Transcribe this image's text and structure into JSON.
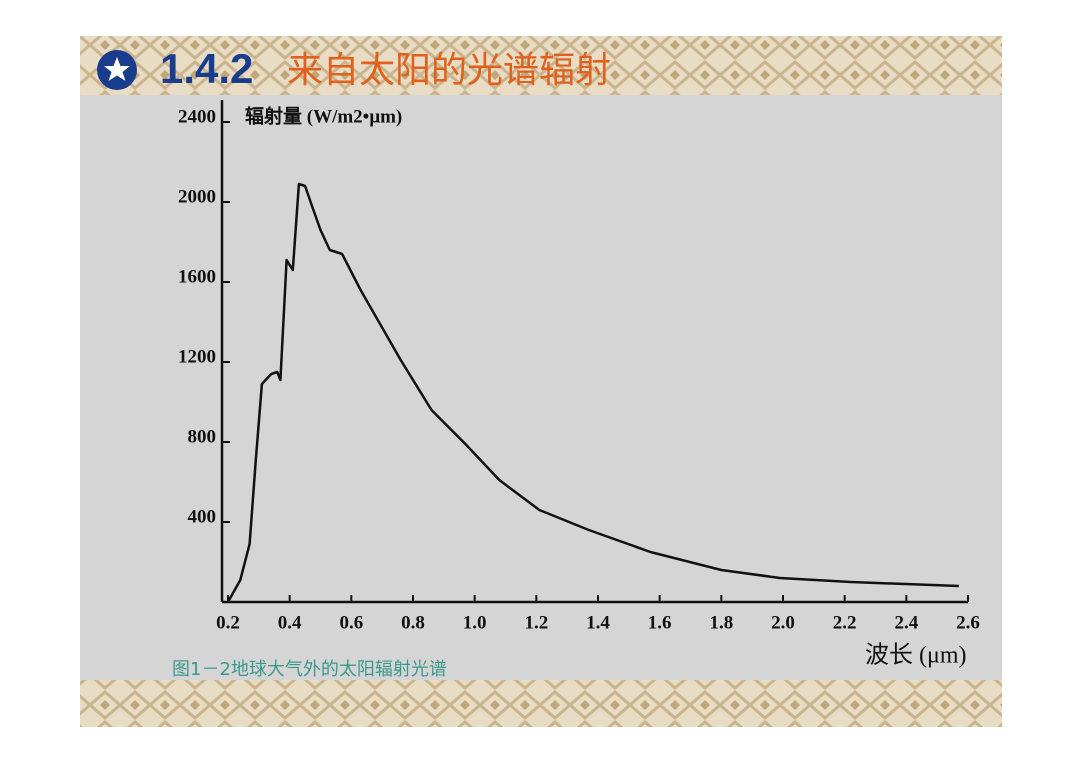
{
  "slide": {
    "section_number": "1.4.2",
    "section_title": "来自太阳的光谱辐射",
    "caption": "图1－2地球大气外的太阳辐射光谱"
  },
  "chart_data": {
    "type": "line",
    "y_label": "辐射量 (W/m2•μm)",
    "x_label": "波长 (μm)",
    "x": [
      0.2,
      0.24,
      0.27,
      0.29,
      0.31,
      0.34,
      0.36,
      0.37,
      0.39,
      0.41,
      0.43,
      0.45,
      0.47,
      0.5,
      0.53,
      0.57,
      0.63,
      0.76,
      0.86,
      0.97,
      1.08,
      1.21,
      1.37,
      1.57,
      1.8,
      1.99,
      2.22,
      2.57
    ],
    "series": [
      {
        "color": "#111111",
        "values": [
          0,
          110,
          290,
          710,
          1090,
          1140,
          1150,
          1110,
          1710,
          1660,
          2090,
          2080,
          1990,
          1860,
          1760,
          1740,
          1560,
          1210,
          960,
          790,
          610,
          460,
          360,
          250,
          160,
          120,
          100,
          80
        ]
      }
    ],
    "xlim": [
      0.2,
      2.6
    ],
    "ylim": [
      0,
      2400
    ],
    "xticks": [
      0.2,
      0.4,
      0.6,
      0.8,
      {
        "value": 1,
        "label": "1.0"
      },
      1.2,
      1.4,
      1.6,
      1.8,
      {
        "value": 2,
        "label": "2.0"
      },
      2.2,
      2.4,
      2.6
    ],
    "yticks": [
      400,
      800,
      1200,
      1600,
      2000,
      2400
    ]
  }
}
